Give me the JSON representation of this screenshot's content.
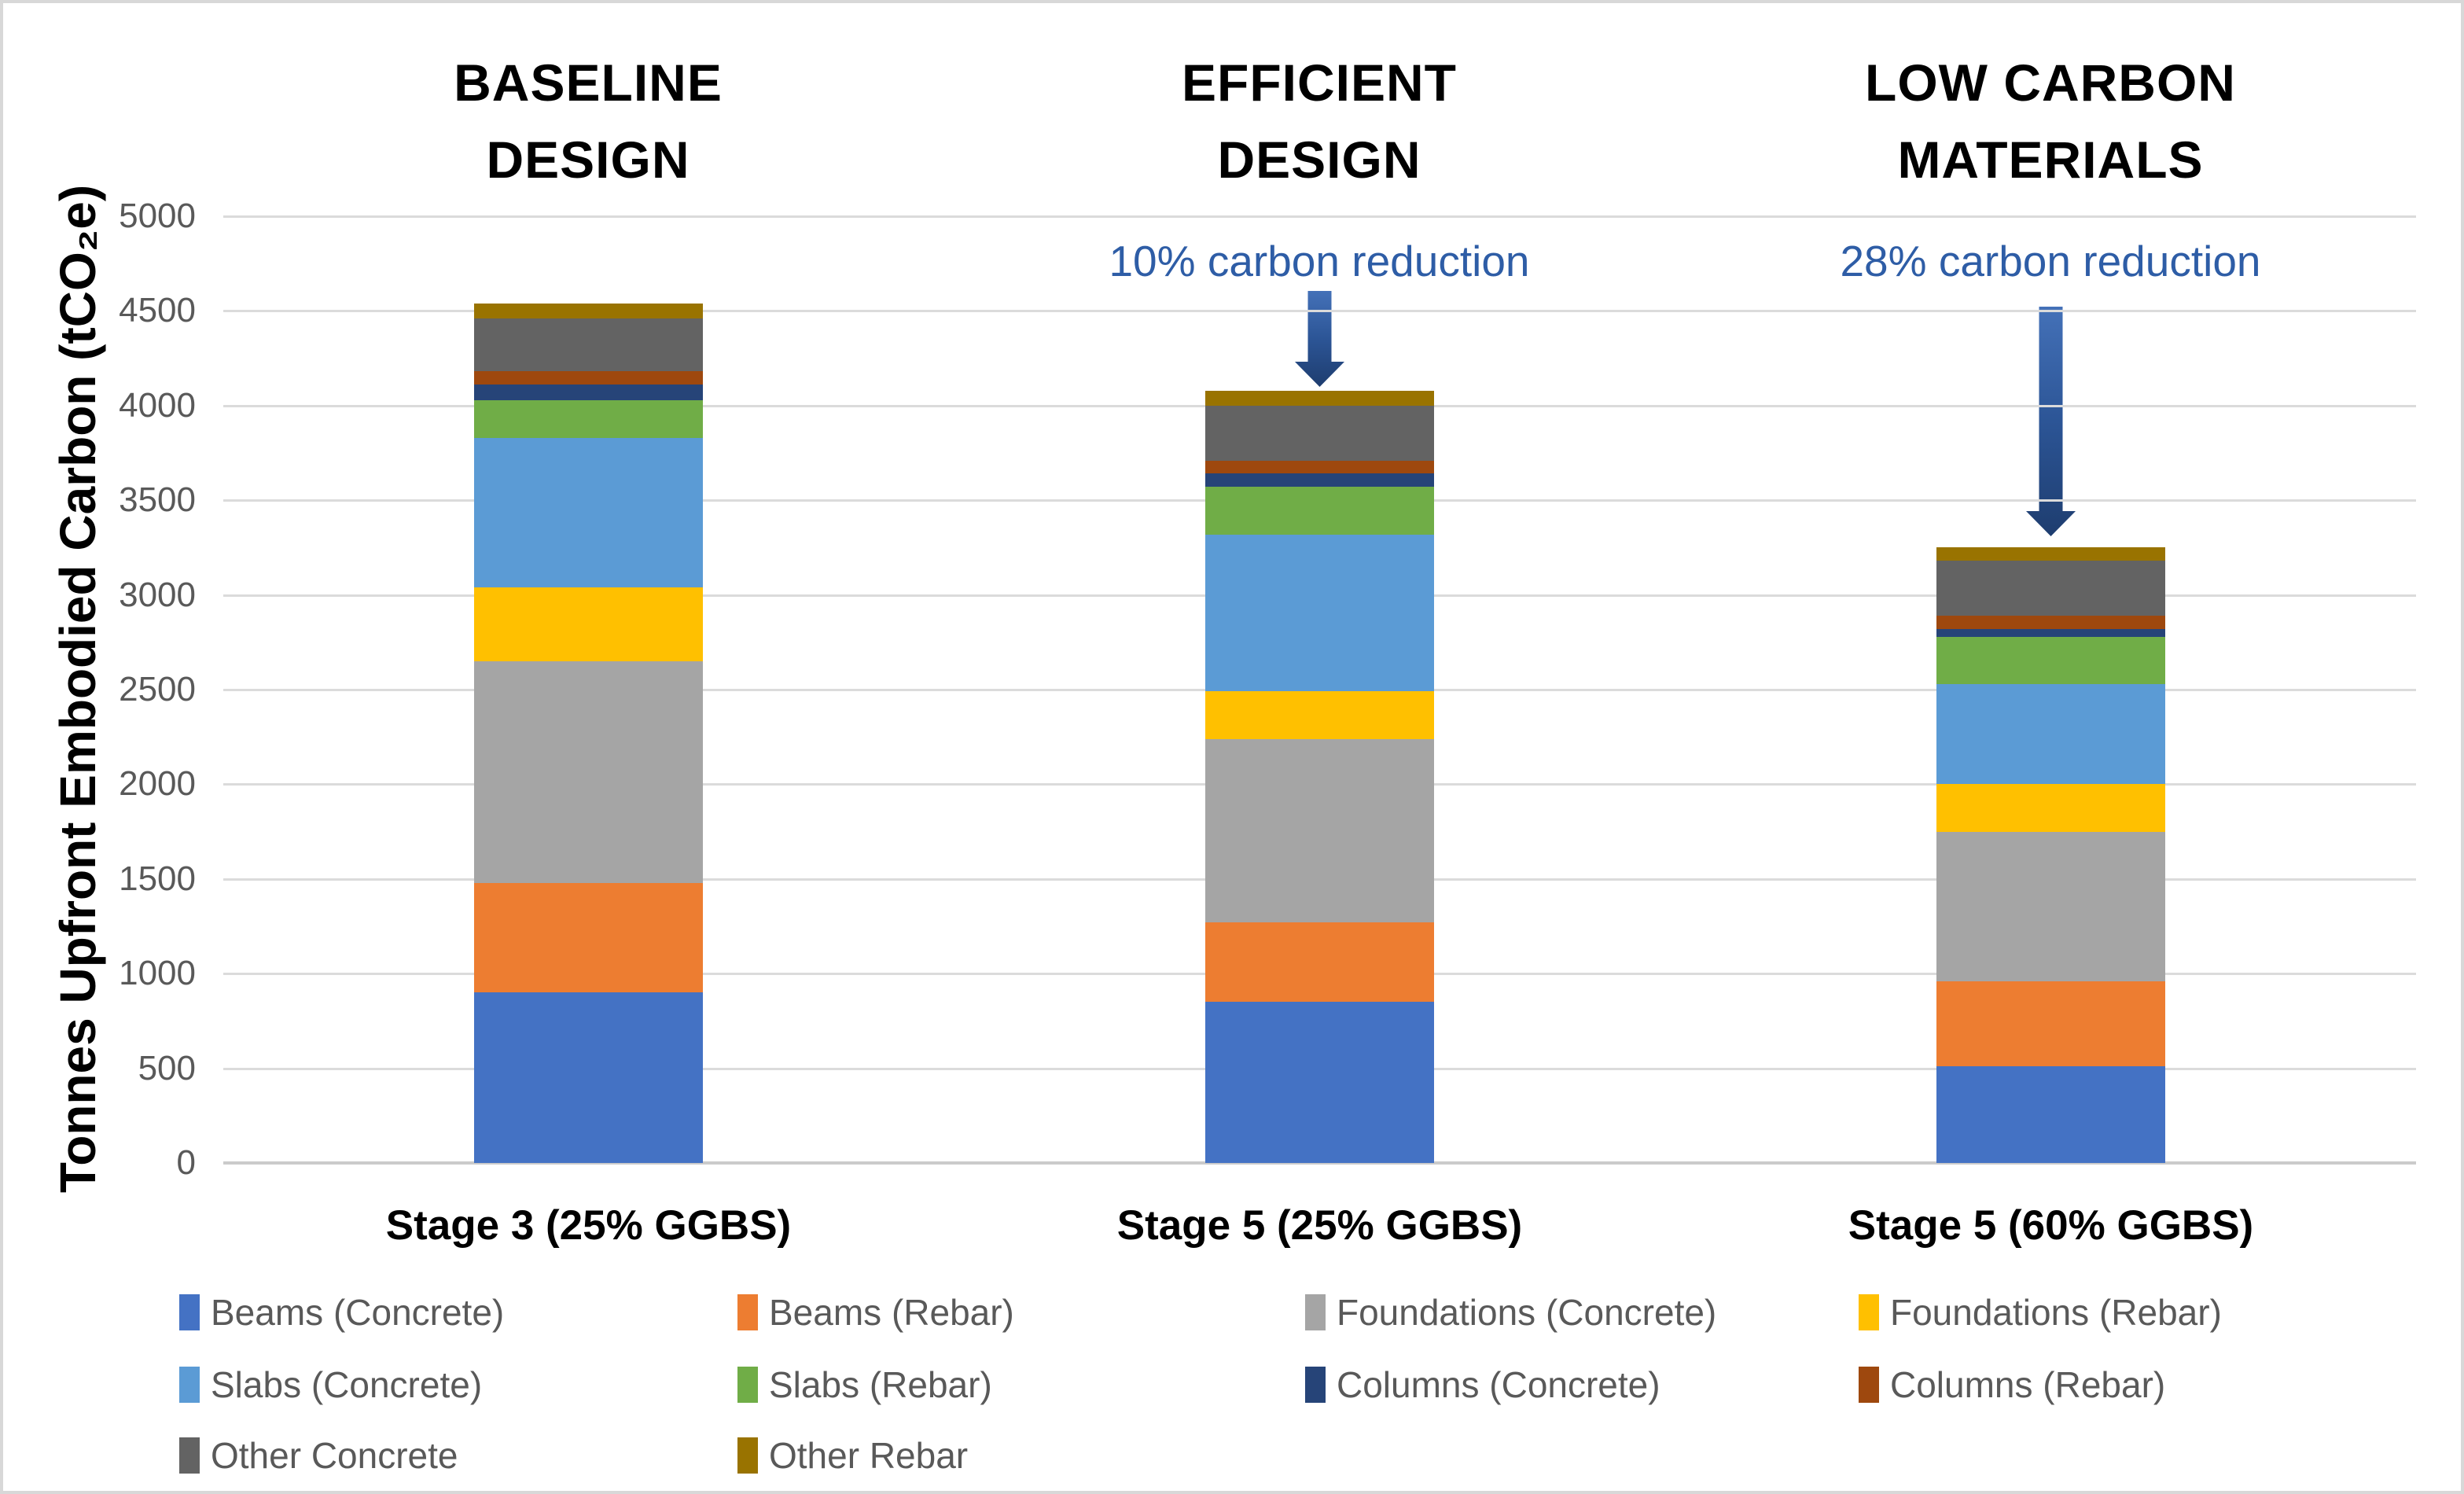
{
  "figure": {
    "background": "#FFFFFF",
    "border_color": "#D8D8D8"
  },
  "columns": [
    {
      "line1": "BASELINE",
      "line2": "DESIGN"
    },
    {
      "line1": "EFFICIENT",
      "line2": "DESIGN"
    },
    {
      "line1": "LOW CARBON",
      "line2": "MATERIALS"
    }
  ],
  "annotations": [
    {
      "text": "10% carbon reduction"
    },
    {
      "text": "28% carbon reduction"
    }
  ],
  "colors": {
    "annotation_text": "#2E5DA6",
    "arrow_top": "#4471B8",
    "arrow_bottom": "#1E3D6F",
    "grid": "#DBDBDB",
    "axis": "#CBCBCB",
    "tick_text": "#595959",
    "legend_text": "#595959"
  },
  "chart_data": {
    "type": "bar",
    "stacked": true,
    "title": "",
    "xlabel": "",
    "ylabel": "Tonnes Upfront Embodied Carbon (tCO₂e)",
    "ylim": [
      0,
      5000
    ],
    "ytick_step": 500,
    "grid": "horizontal",
    "legend_position": "bottom",
    "categories": [
      "Stage 3 (25% GGBS)",
      "Stage 5 (25% GGBS)",
      "Stage 5 (60% GGBS)"
    ],
    "category_totals": [
      4540,
      4080,
      3250
    ],
    "series": [
      {
        "name": "Beams (Concrete)",
        "color": "#4472C4",
        "values": [
          900,
          850,
          510
        ]
      },
      {
        "name": "Beams (Rebar)",
        "color": "#ED7D31",
        "values": [
          580,
          420,
          450
        ]
      },
      {
        "name": "Foundations (Concrete)",
        "color": "#A5A5A5",
        "values": [
          1170,
          970,
          790
        ]
      },
      {
        "name": "Foundations (Rebar)",
        "color": "#FFC000",
        "values": [
          390,
          250,
          250
        ]
      },
      {
        "name": "Slabs (Concrete)",
        "color": "#5B9BD5",
        "values": [
          790,
          830,
          530
        ]
      },
      {
        "name": "Slabs (Rebar)",
        "color": "#70AD47",
        "values": [
          200,
          250,
          250
        ]
      },
      {
        "name": "Columns (Concrete)",
        "color": "#264478",
        "values": [
          80,
          70,
          40
        ]
      },
      {
        "name": "Columns (Rebar)",
        "color": "#9E480E",
        "values": [
          70,
          70,
          70
        ]
      },
      {
        "name": "Other Concrete",
        "color": "#636363",
        "values": [
          280,
          290,
          290
        ]
      },
      {
        "name": "Other Rebar",
        "color": "#997300",
        "values": [
          80,
          80,
          70
        ]
      }
    ]
  }
}
